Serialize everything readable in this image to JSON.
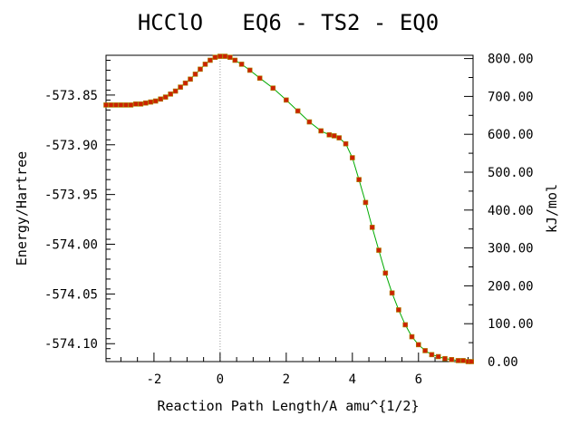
{
  "chart_data": {
    "type": "line",
    "title": "HCClO   EQ6 - TS2 - EQ0",
    "xlabel": "Reaction Path Length/A amu^{1/2}",
    "ylabel": "Energy/Hartree",
    "y2label": "kJ/mol",
    "xlim": [
      -3.45,
      7.65
    ],
    "ylim": [
      -574.118,
      -573.81
    ],
    "y2lim": [
      0,
      808.6
    ],
    "x_ticks": [
      -2,
      0,
      2,
      4,
      6
    ],
    "x_tick_labels": [
      "-2",
      "0",
      "2",
      "4",
      "6"
    ],
    "y_ticks": [
      -573.85,
      -573.9,
      -573.95,
      -574.0,
      -574.05,
      -574.1
    ],
    "y_tick_labels": [
      "-573.85",
      "-573.90",
      "-573.95",
      "-574.00",
      "-574.05",
      "-574.10"
    ],
    "y2_ticks": [
      800,
      700,
      600,
      500,
      400,
      300,
      200,
      100,
      0
    ],
    "y2_tick_labels": [
      "800.00",
      "700.00",
      "600.00",
      "500.00",
      "400.00",
      "300.00",
      "200.00",
      "100.00",
      "0.00"
    ],
    "grid": false,
    "ts_marker_x": 0,
    "line_color": "#00aa00",
    "marker_color": "#cc2200",
    "series": [
      {
        "x": [
          -3.45,
          -3.3,
          -3.15,
          -3.0,
          -2.85,
          -2.7,
          -2.55,
          -2.4,
          -2.25,
          -2.1,
          -1.95,
          -1.8,
          -1.65,
          -1.5,
          -1.35,
          -1.2,
          -1.05,
          -0.9,
          -0.75,
          -0.6,
          -0.45,
          -0.3,
          -0.15,
          0.0,
          0.15,
          0.3,
          0.45,
          0.65,
          0.9,
          1.2,
          1.6,
          2.0,
          2.35,
          2.7,
          3.05,
          3.3,
          3.45,
          3.6,
          3.8,
          4.0,
          4.2,
          4.4,
          4.6,
          4.8,
          5.0,
          5.2,
          5.4,
          5.6,
          5.8,
          6.0,
          6.2,
          6.4,
          6.6,
          6.8,
          7.0,
          7.2,
          7.35,
          7.5,
          7.6
        ],
        "y": [
          -573.86,
          -573.86,
          -573.86,
          -573.86,
          -573.86,
          -573.86,
          -573.859,
          -573.859,
          -573.858,
          -573.857,
          -573.856,
          -573.854,
          -573.852,
          -573.849,
          -573.846,
          -573.842,
          -573.838,
          -573.834,
          -573.829,
          -573.824,
          -573.819,
          -573.815,
          -573.812,
          -573.811,
          -573.811,
          -573.812,
          -573.815,
          -573.819,
          -573.825,
          -573.833,
          -573.843,
          -573.855,
          -573.866,
          -573.877,
          -573.886,
          -573.89,
          -573.891,
          -573.893,
          -573.899,
          -573.913,
          -573.935,
          -573.958,
          -573.983,
          -574.006,
          -574.029,
          -574.049,
          -574.066,
          -574.081,
          -574.093,
          -574.101,
          -574.107,
          -574.111,
          -574.113,
          -574.115,
          -574.116,
          -574.117,
          -574.117,
          -574.118,
          -574.118
        ]
      }
    ]
  }
}
